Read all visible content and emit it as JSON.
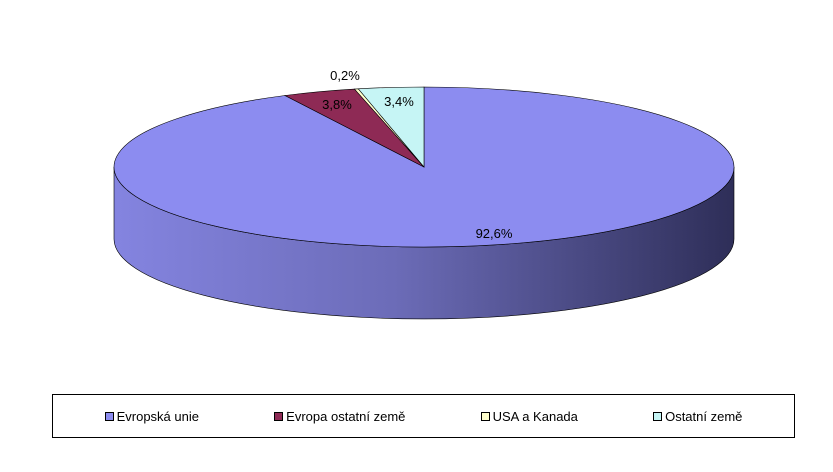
{
  "chart_data": {
    "type": "pie",
    "style": "3d",
    "categories": [
      "Evropská unie",
      "Evropa ostatní země",
      "USA a Kanada",
      "Ostatní země"
    ],
    "values": [
      92.6,
      3.8,
      0.2,
      3.4
    ],
    "labels": [
      "92,6%",
      "3,8%",
      "0,2%",
      "3,4%"
    ],
    "colors": [
      "#8C8CF0",
      "#8E2A55",
      "#FFFFCC",
      "#C6F5F5"
    ],
    "legend_position": "bottom"
  }
}
